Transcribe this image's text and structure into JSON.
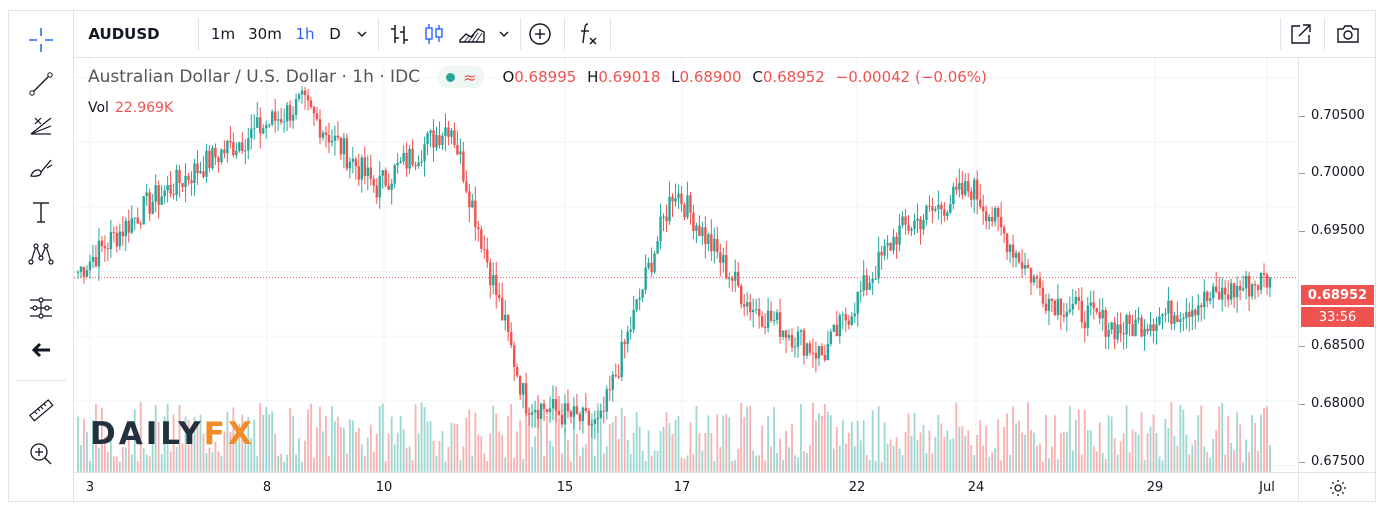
{
  "toolbar": {
    "symbol": "AUDUSD",
    "intervals": [
      "1m",
      "30m",
      "1h",
      "D"
    ],
    "active_interval": "1h"
  },
  "legend": {
    "title": "Australian Dollar / U.S. Dollar · 1h · IDC",
    "wave_glyph": "≈",
    "open_label": "O",
    "open": "0.68995",
    "high_label": "H",
    "high": "0.69018",
    "low_label": "L",
    "low": "0.68900",
    "close_label": "C",
    "close": "0.68952",
    "change": "−0.00042 (−0.06%)",
    "volume_label": "Vol",
    "volume": "22.969K"
  },
  "price_axis": {
    "ticks": [
      "0.70500",
      "0.70000",
      "0.69500",
      "0.69000",
      "0.68500",
      "0.68000",
      "0.67500"
    ],
    "last_price": "0.68952",
    "countdown": "33:56"
  },
  "time_axis": {
    "ticks": [
      "3",
      "8",
      "10",
      "15",
      "17",
      "22",
      "24",
      "29",
      "Jul"
    ]
  },
  "logo": {
    "part1": "DAILY",
    "part2": "FX"
  },
  "icons": {
    "left_tools": [
      "crosshair-icon",
      "trend-line-icon",
      "fib-icon",
      "brush-icon",
      "text-icon",
      "pattern-icon",
      "measure-tools-icon",
      "back-arrow-icon",
      "ruler-icon",
      "zoom-in-icon"
    ],
    "top_tools": [
      "bar-style-icon",
      "candle-style-icon",
      "area-style-icon",
      "add-indicator-icon",
      "fx-indicator-icon",
      "fullscreen-icon",
      "camera-icon"
    ]
  },
  "colors": {
    "up": "#26a69a",
    "down": "#ef5350",
    "accent": "#2962ff"
  },
  "chart_data": {
    "type": "candlestick",
    "symbol": "AUDUSD",
    "interval": "1h",
    "ylim": [
      0.6745,
      0.7065
    ],
    "x_ticks": [
      "3",
      "8",
      "10",
      "15",
      "17",
      "22",
      "24",
      "29",
      "Jul"
    ],
    "last_price": 0.68952,
    "close_path_approx": [
      {
        "x": "3",
        "close": 0.69
      },
      {
        "x": "3",
        "close": 0.6955
      },
      {
        "x": "8",
        "close": 0.6995
      },
      {
        "x": "8",
        "close": 0.703
      },
      {
        "x": "10",
        "close": 0.6965
      },
      {
        "x": "10",
        "close": 0.7015
      },
      {
        "x": "15",
        "close": 0.68
      },
      {
        "x": "15",
        "close": 0.678
      },
      {
        "x": "17",
        "close": 0.6965
      },
      {
        "x": "17",
        "close": 0.6875
      },
      {
        "x": "22",
        "close": 0.6835
      },
      {
        "x": "22",
        "close": 0.693
      },
      {
        "x": "24",
        "close": 0.6965
      },
      {
        "x": "24",
        "close": 0.688
      },
      {
        "x": "29",
        "close": 0.6855
      },
      {
        "x": "29",
        "close": 0.6875
      },
      {
        "x": "Jul",
        "close": 0.6895
      }
    ]
  }
}
